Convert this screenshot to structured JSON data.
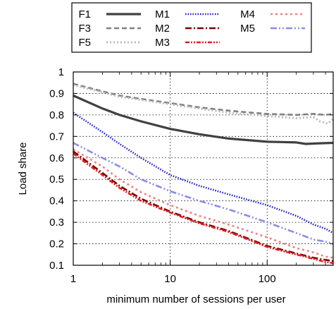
{
  "chart_data": {
    "type": "line",
    "title": "",
    "xlabel": "minimum number of sessions per user",
    "ylabel": "Load share",
    "xscale": "log",
    "xlim": [
      1,
      480
    ],
    "ylim": [
      0.1,
      1.0
    ],
    "xticks": [
      1,
      10,
      100
    ],
    "xtick_labels": [
      "1",
      "10",
      "100"
    ],
    "yticks": [
      0.1,
      0.2,
      0.3,
      0.4,
      0.5,
      0.6,
      0.7,
      0.8,
      0.9,
      1.0
    ],
    "ytick_labels": [
      "0.1",
      "0.2",
      "0.3",
      "0.4",
      "0.5",
      "0.6",
      "0.7",
      "0.8",
      "0.9",
      "1"
    ],
    "grid": true,
    "legend_position": "top",
    "series": [
      {
        "name": "F1",
        "color": "#404040",
        "dash": "solid",
        "width": 3.2,
        "points": [
          [
            1,
            0.89
          ],
          [
            2,
            0.83
          ],
          [
            3,
            0.8
          ],
          [
            5,
            0.77
          ],
          [
            10,
            0.735
          ],
          [
            20,
            0.71
          ],
          [
            40,
            0.69
          ],
          [
            100,
            0.675
          ],
          [
            200,
            0.672
          ],
          [
            250,
            0.665
          ],
          [
            350,
            0.668
          ],
          [
            480,
            0.67
          ]
        ]
      },
      {
        "name": "F3",
        "color": "#808080",
        "dash": "7,4",
        "width": 2.6,
        "points": [
          [
            1,
            0.945
          ],
          [
            2,
            0.91
          ],
          [
            3,
            0.89
          ],
          [
            5,
            0.875
          ],
          [
            10,
            0.855
          ],
          [
            20,
            0.835
          ],
          [
            40,
            0.82
          ],
          [
            70,
            0.81
          ],
          [
            100,
            0.805
          ],
          [
            200,
            0.8
          ],
          [
            300,
            0.805
          ],
          [
            400,
            0.8
          ],
          [
            480,
            0.805
          ]
        ]
      },
      {
        "name": "F5",
        "color": "#bbbbbb",
        "dash": "2,3",
        "width": 3,
        "points": [
          [
            1,
            0.94
          ],
          [
            2,
            0.905
          ],
          [
            3,
            0.885
          ],
          [
            5,
            0.87
          ],
          [
            10,
            0.85
          ],
          [
            20,
            0.83
          ],
          [
            40,
            0.81
          ],
          [
            100,
            0.795
          ],
          [
            200,
            0.785
          ],
          [
            300,
            0.79
          ],
          [
            350,
            0.77
          ],
          [
            420,
            0.76
          ],
          [
            480,
            0.78
          ]
        ]
      },
      {
        "name": "M1",
        "color": "#1a1acc",
        "dash": "1.5,2",
        "width": 2.6,
        "points": [
          [
            1,
            0.81
          ],
          [
            2,
            0.72
          ],
          [
            3,
            0.665
          ],
          [
            5,
            0.6
          ],
          [
            10,
            0.52
          ],
          [
            20,
            0.47
          ],
          [
            40,
            0.43
          ],
          [
            100,
            0.38
          ],
          [
            200,
            0.33
          ],
          [
            300,
            0.29
          ],
          [
            400,
            0.27
          ],
          [
            480,
            0.25
          ]
        ]
      },
      {
        "name": "M2",
        "color": "#800000",
        "dash": "9,3,2,3",
        "width": 2.6,
        "points": [
          [
            1,
            0.63
          ],
          [
            2,
            0.53
          ],
          [
            3,
            0.47
          ],
          [
            5,
            0.41
          ],
          [
            10,
            0.35
          ],
          [
            20,
            0.3
          ],
          [
            40,
            0.26
          ],
          [
            100,
            0.19
          ],
          [
            200,
            0.155
          ],
          [
            300,
            0.135
          ],
          [
            400,
            0.125
          ],
          [
            480,
            0.12
          ]
        ]
      },
      {
        "name": "M3",
        "color": "#e02020",
        "dash": "6,2,2,2,2,2",
        "width": 2.6,
        "points": [
          [
            1,
            0.62
          ],
          [
            2,
            0.52
          ],
          [
            3,
            0.46
          ],
          [
            5,
            0.4
          ],
          [
            10,
            0.345
          ],
          [
            20,
            0.295
          ],
          [
            40,
            0.255
          ],
          [
            100,
            0.185
          ],
          [
            200,
            0.15
          ],
          [
            300,
            0.13
          ],
          [
            400,
            0.115
          ],
          [
            480,
            0.11
          ]
        ]
      },
      {
        "name": "M4",
        "color": "#f08080",
        "dash": "3,4",
        "width": 2.6,
        "points": [
          [
            1,
            0.64
          ],
          [
            2,
            0.56
          ],
          [
            3,
            0.5
          ],
          [
            5,
            0.44
          ],
          [
            10,
            0.38
          ],
          [
            20,
            0.33
          ],
          [
            40,
            0.29
          ],
          [
            100,
            0.23
          ],
          [
            200,
            0.18
          ],
          [
            300,
            0.16
          ],
          [
            400,
            0.14
          ],
          [
            480,
            0.135
          ]
        ]
      },
      {
        "name": "M5",
        "color": "#8c8ce8",
        "dash": "9,3,2,3,2,3",
        "width": 2.6,
        "points": [
          [
            1,
            0.67
          ],
          [
            2,
            0.6
          ],
          [
            3,
            0.56
          ],
          [
            5,
            0.5
          ],
          [
            10,
            0.445
          ],
          [
            20,
            0.4
          ],
          [
            40,
            0.36
          ],
          [
            100,
            0.3
          ],
          [
            200,
            0.25
          ],
          [
            300,
            0.22
          ],
          [
            400,
            0.21
          ],
          [
            480,
            0.2
          ]
        ]
      }
    ]
  }
}
